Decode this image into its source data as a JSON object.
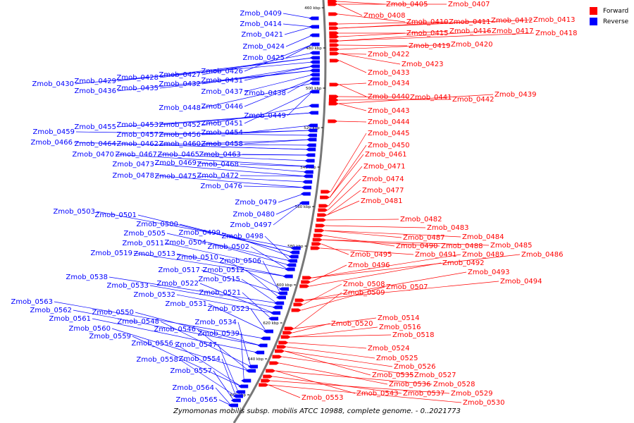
{
  "caption": "Zymomonas mobilis subsp. mobilis ATCC 10988, complete genome. - 0..2021773",
  "legend": [
    {
      "label": "Forward",
      "color": "#ff0000"
    },
    {
      "label": "Reverse",
      "color": "#0000ff"
    }
  ],
  "colors": {
    "forward": "#ff0000",
    "reverse": "#0000ff",
    "backbone": "#777777"
  },
  "ticks": [
    "460 kbp",
    "480 kbp",
    "500 kbp",
    "520 kbp",
    "540 kbp",
    "560 kbp",
    "580 kbp",
    "600 kbp",
    "620 kbp",
    "640 kbp",
    "660 kbp"
  ],
  "reverse_labels": [
    "Zmob_0409",
    "Zmob_0414",
    "Zmob_0421",
    "Zmob_0424",
    "Zmob_0425",
    "Zmob_0426",
    "Zmob_0427",
    "Zmob_0428",
    "Zmob_0429",
    "Zmob_0430",
    "Zmob_0431",
    "Zmob_0432",
    "Zmob_0435",
    "Zmob_0436",
    "Zmob_0437",
    "Zmob_0438",
    "Zmob_0446",
    "Zmob_0448",
    "Zmob_0449",
    "Zmob_0451",
    "Zmob_0452",
    "Zmob_0453",
    "Zmob_0455",
    "Zmob_0454",
    "Zmob_0456",
    "Zmob_0457",
    "Zmob_0459",
    "Zmob_0458",
    "Zmob_0460",
    "Zmob_0462",
    "Zmob_0464",
    "Zmob_0466",
    "Zmob_0463",
    "Zmob_0465",
    "Zmob_0467",
    "Zmob_0470",
    "Zmob_0468",
    "Zmob_0469",
    "Zmob_0473",
    "Zmob_0472",
    "Zmob_0475",
    "Zmob_0478",
    "Zmob_0476",
    "Zmob_0479",
    "Zmob_0480",
    "Zmob_0497",
    "Zmob_0503",
    "Zmob_0501",
    "Zmob_0500",
    "Zmob_0499",
    "Zmob_0505",
    "Zmob_0498",
    "Zmob_0504",
    "Zmob_0511",
    "Zmob_0502",
    "Zmob_0519",
    "Zmob_0513",
    "Zmob_0510",
    "Zmob_0506",
    "Zmob_0517",
    "Zmob_0512",
    "Zmob_0538",
    "Zmob_0515",
    "Zmob_0533",
    "Zmob_0522",
    "Zmob_0532",
    "Zmob_0521",
    "Zmob_0531",
    "Zmob_0523",
    "Zmob_0563",
    "Zmob_0562",
    "Zmob_0550",
    "Zmob_0561",
    "Zmob_0548",
    "Zmob_0534",
    "Zmob_0560",
    "Zmob_0546",
    "Zmob_0539",
    "Zmob_0559",
    "Zmob_0556",
    "Zmob_0547",
    "Zmob_0558",
    "Zmob_0554",
    "Zmob_0557",
    "Zmob_0564",
    "Zmob_0565"
  ],
  "forward_labels": [
    "Zmob_0405",
    "Zmob_0407",
    "Zmob_0408",
    "Zmob_0410",
    "Zmob_0411",
    "Zmob_0412",
    "Zmob_0413",
    "Zmob_0415",
    "Zmob_0416",
    "Zmob_0417",
    "Zmob_0418",
    "Zmob_0419",
    "Zmob_0420",
    "Zmob_0422",
    "Zmob_0423",
    "Zmob_0433",
    "Zmob_0434",
    "Zmob_0440",
    "Zmob_0441",
    "Zmob_0442",
    "Zmob_0439",
    "Zmob_0443",
    "Zmob_0444",
    "Zmob_0445",
    "Zmob_0450",
    "Zmob_0461",
    "Zmob_0471",
    "Zmob_0474",
    "Zmob_0477",
    "Zmob_0481",
    "Zmob_0482",
    "Zmob_0483",
    "Zmob_0487",
    "Zmob_0484",
    "Zmob_0490",
    "Zmob_0488",
    "Zmob_0485",
    "Zmob_0495",
    "Zmob_0491",
    "Zmob_0489",
    "Zmob_0486",
    "Zmob_0496",
    "Zmob_0492",
    "Zmob_0493",
    "Zmob_0494",
    "Zmob_0508",
    "Zmob_0507",
    "Zmob_0509",
    "Zmob_0514",
    "Zmob_0520",
    "Zmob_0516",
    "Zmob_0518",
    "Zmob_0524",
    "Zmob_0525",
    "Zmob_0526",
    "Zmob_0535",
    "Zmob_0527",
    "Zmob_0536",
    "Zmob_0528",
    "Zmob_0543",
    "Zmob_0537",
    "Zmob_0529",
    "Zmob_0553",
    "Zmob_0530"
  ]
}
